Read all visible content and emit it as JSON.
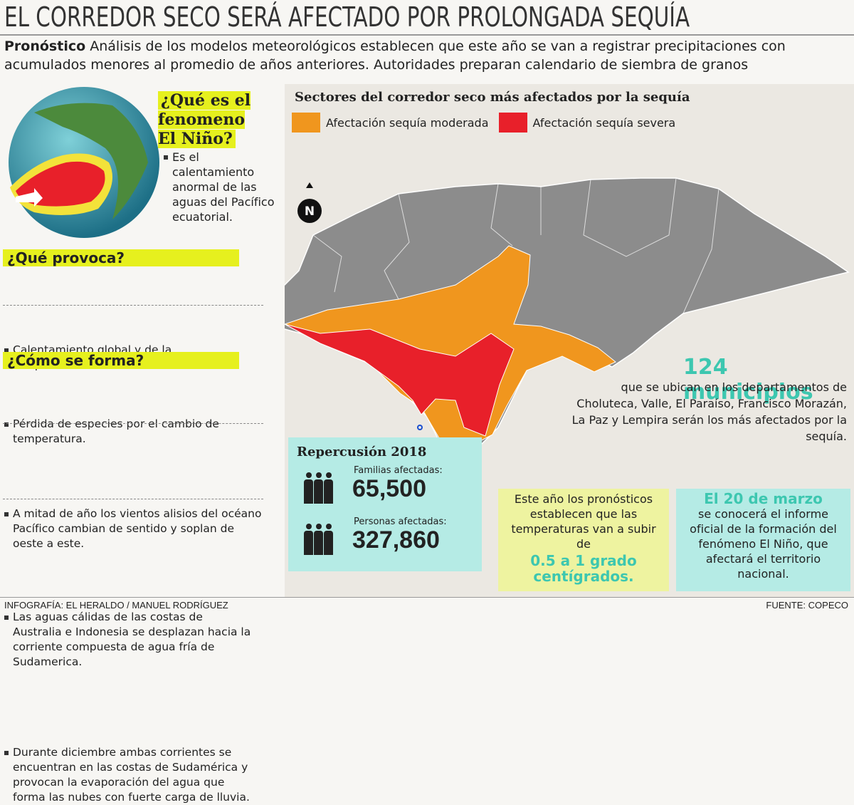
{
  "header": {
    "title": "EL CORREDOR SECO SERÁ AFECTADO POR PROLONGADA SEQUÍA",
    "lead_label": "Pronóstico",
    "lead_text": "Análisis de los modelos meteorológicos establecen que este año se van a registrar precipitaciones con acumulados menores al promedio de años anteriores. Autoridades preparan calendario de siembra de granos"
  },
  "el_nino": {
    "title": "¿Qué es el fenomeno El Niño?",
    "text": "Es el calentamiento anormal de las aguas del Pacífico ecuatorial."
  },
  "provoca": {
    "title": "¿Qué provoca?",
    "items": [
      "Calentamiento global y de la temperatura en el mar.",
      "Pérdida de especies por el cambio de temperatura."
    ]
  },
  "forma": {
    "title": "¿Cómo se forma?",
    "items": [
      "A mitad de año los vientos alisios del océano Pacífico cambian de sentido y soplan de oeste a este.",
      "Las aguas cálidas de las costas de Australia e Indonesia se desplazan hacia la corriente compuesta de agua fría de Sudamerica.",
      "Durante diciembre ambas corrientes se encuentran en las costas de Sudamérica y provocan la evaporación del agua que forma las nubes con fuerte carga de lluvia."
    ]
  },
  "map": {
    "title": "Sectores del corredor seco más afectados por la sequía",
    "compass": "N",
    "legend": [
      {
        "label": "Afectación sequía moderada",
        "color": "#f0961e"
      },
      {
        "label": "Afectación sequía severa",
        "color": "#e8202a"
      }
    ]
  },
  "municipios": {
    "headline": "124 municipios",
    "text": "que se ubican en los departamentos de Choluteca, Valle, El Paraíso, Francisco Morazán, La Paz y Lempira serán los más afectados por la sequía."
  },
  "repercusion": {
    "title": "Repercusión 2018",
    "stats": [
      {
        "label": "Familias afectadas:",
        "value": "65,500"
      },
      {
        "label": "Personas afectadas:",
        "value": "327,860"
      }
    ]
  },
  "forecast": {
    "text": "Este año los pronósticos establecen que las temperaturas van a subir de",
    "highlight": "0.5 a 1 grado centígrados."
  },
  "marzo": {
    "highlight": "El 20 de marzo",
    "text": "se conocerá el informe oficial de la formación del fenómeno El Niño, que afectará el territorio nacional."
  },
  "footer": {
    "credit": "INFOGRAFÍA: EL HERALDO / MANUEL RODRÍGUEZ",
    "source": "FUENTE: COPECO"
  }
}
